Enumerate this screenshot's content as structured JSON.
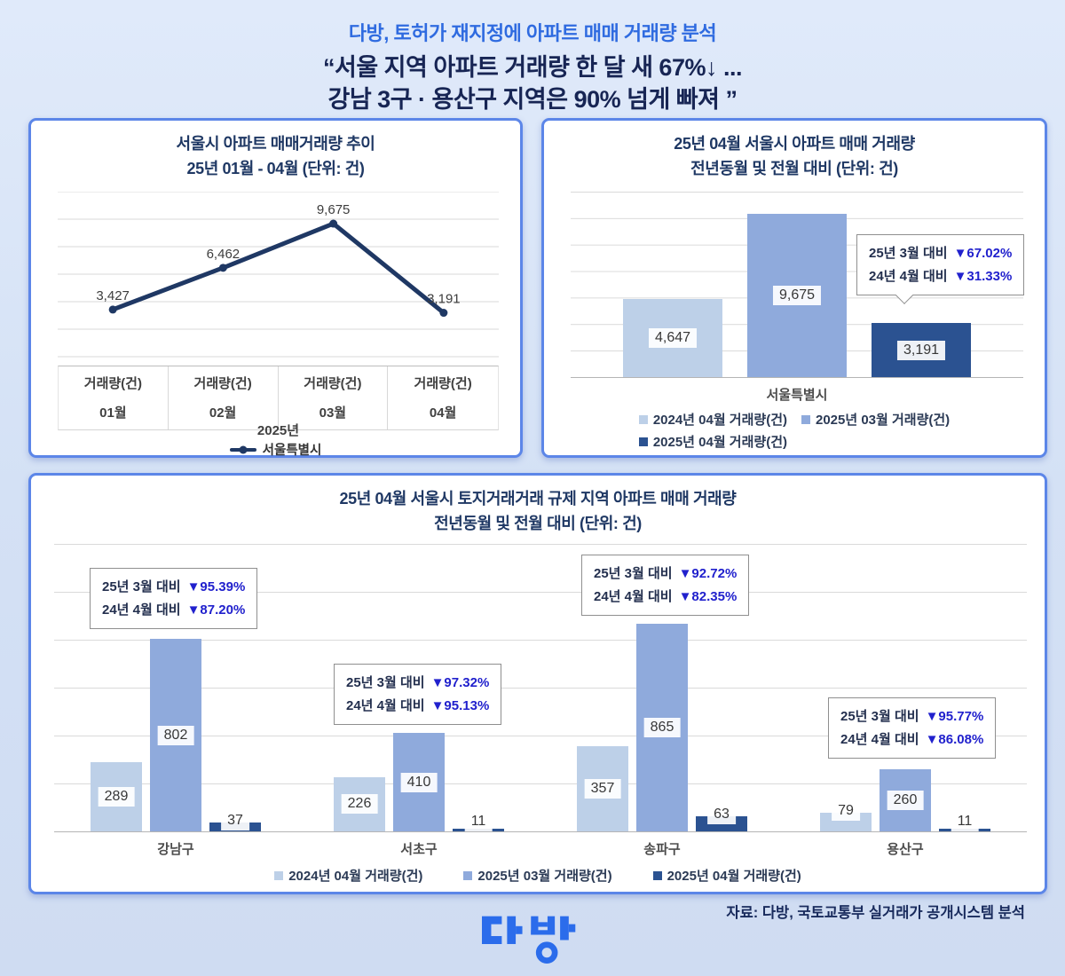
{
  "header": {
    "kicker": "다방, 토허가 재지정에 아파트 매매 거래량 분석",
    "quote_line1": "“서울 지역 아파트 거래량 한 달 새 67%↓ ...",
    "quote_line2": "강남 3구 · 용산구 지역은 90% 넘게 빠져 ”"
  },
  "colors": {
    "page_bg": "#d4e1f5",
    "panel_border": "#5c86e8",
    "title_navy": "#1f3864",
    "header_blue": "#2f6be0",
    "quote_navy": "#172554",
    "pct_blue": "#2121cd",
    "bar_light": "#bdd0e8",
    "bar_mid": "#8faadc",
    "bar_dark": "#2b5291",
    "line_navy": "#1f3864",
    "logo_blue": "#2b6ceb"
  },
  "chart_data": [
    {
      "id": "seoul-trend-line",
      "type": "line",
      "title": "서울시 아파트 매매거래량 추이",
      "subtitle": "25년 01월 - 04월 (단위: 건)",
      "categories": [
        "01월",
        "02월",
        "03월",
        "04월"
      ],
      "category_header": "거래량(건)",
      "x_group_label": "2025년",
      "series": [
        {
          "name": "서울특별시",
          "color": "#1f3864",
          "values": [
            3427,
            6462,
            9675,
            3191
          ]
        }
      ],
      "value_labels": [
        "3,427",
        "6,462",
        "9,675",
        "3,191"
      ],
      "ylim": [
        0,
        12000
      ],
      "grid_intervals": 6,
      "grid": true,
      "legend_position": "bottom"
    },
    {
      "id": "seoul-april-compare",
      "type": "bar",
      "title": "25년 04월 서울시 아파트 매매 거래량",
      "subtitle": "전년동월 및 전월 대비 (단위: 건)",
      "categories": [
        "서울특별시"
      ],
      "series": [
        {
          "name": "2024년 04월 거래량(건)",
          "color": "#bdd0e8",
          "values": [
            4647
          ]
        },
        {
          "name": "2025년 03월 거래량(건)",
          "color": "#8faadc",
          "values": [
            9675
          ]
        },
        {
          "name": "2025년 04월 거래량(건)",
          "color": "#2b5291",
          "values": [
            3191
          ]
        }
      ],
      "ylim": [
        0,
        11000
      ],
      "grid_intervals": 7,
      "grid": true,
      "legend_position": "bottom",
      "callout": {
        "line1_label": "25년 3월 대비",
        "line1_value": "▼67.02%",
        "line2_label": "24년 4월 대비",
        "line2_value": "▼31.33%"
      }
    },
    {
      "id": "district-compare",
      "type": "bar",
      "title": "25년 04월 서울시 토지거래거래 규제 지역 아파트 매매 거래량",
      "subtitle": "전년동월 및 전월 대비 (단위: 건)",
      "categories": [
        "강남구",
        "서초구",
        "송파구",
        "용산구"
      ],
      "series": [
        {
          "name": "2024년 04월 거래량(건)",
          "color": "#bdd0e8",
          "values": [
            289,
            226,
            357,
            79
          ]
        },
        {
          "name": "2025년 03월 거래량(건)",
          "color": "#8faadc",
          "values": [
            802,
            410,
            865,
            260
          ]
        },
        {
          "name": "2025년 04월 거래량(건)",
          "color": "#2b5291",
          "values": [
            37,
            11,
            63,
            11
          ]
        }
      ],
      "ylim": [
        0,
        1200
      ],
      "grid_intervals": 6,
      "grid": true,
      "legend_position": "bottom",
      "callouts": [
        {
          "district": "강남구",
          "line1_label": "25년 3월 대비",
          "line1_value": "▼95.39%",
          "line2_label": "24년 4월 대비",
          "line2_value": "▼87.20%"
        },
        {
          "district": "서초구",
          "line1_label": "25년 3월 대비",
          "line1_value": "▼97.32%",
          "line2_label": "24년 4월 대비",
          "line2_value": "▼95.13%"
        },
        {
          "district": "송파구",
          "line1_label": "25년 3월 대비",
          "line1_value": "▼92.72%",
          "line2_label": "24년 4월 대비",
          "line2_value": "▼82.35%"
        },
        {
          "district": "용산구",
          "line1_label": "25년 3월 대비",
          "line1_value": "▼95.77%",
          "line2_label": "24년 4월 대비",
          "line2_value": "▼86.08%"
        }
      ]
    }
  ],
  "footer": {
    "source": "자료: 다방, 국토교통부 실거래가 공개시스템 분석",
    "logo_text": "다방"
  }
}
